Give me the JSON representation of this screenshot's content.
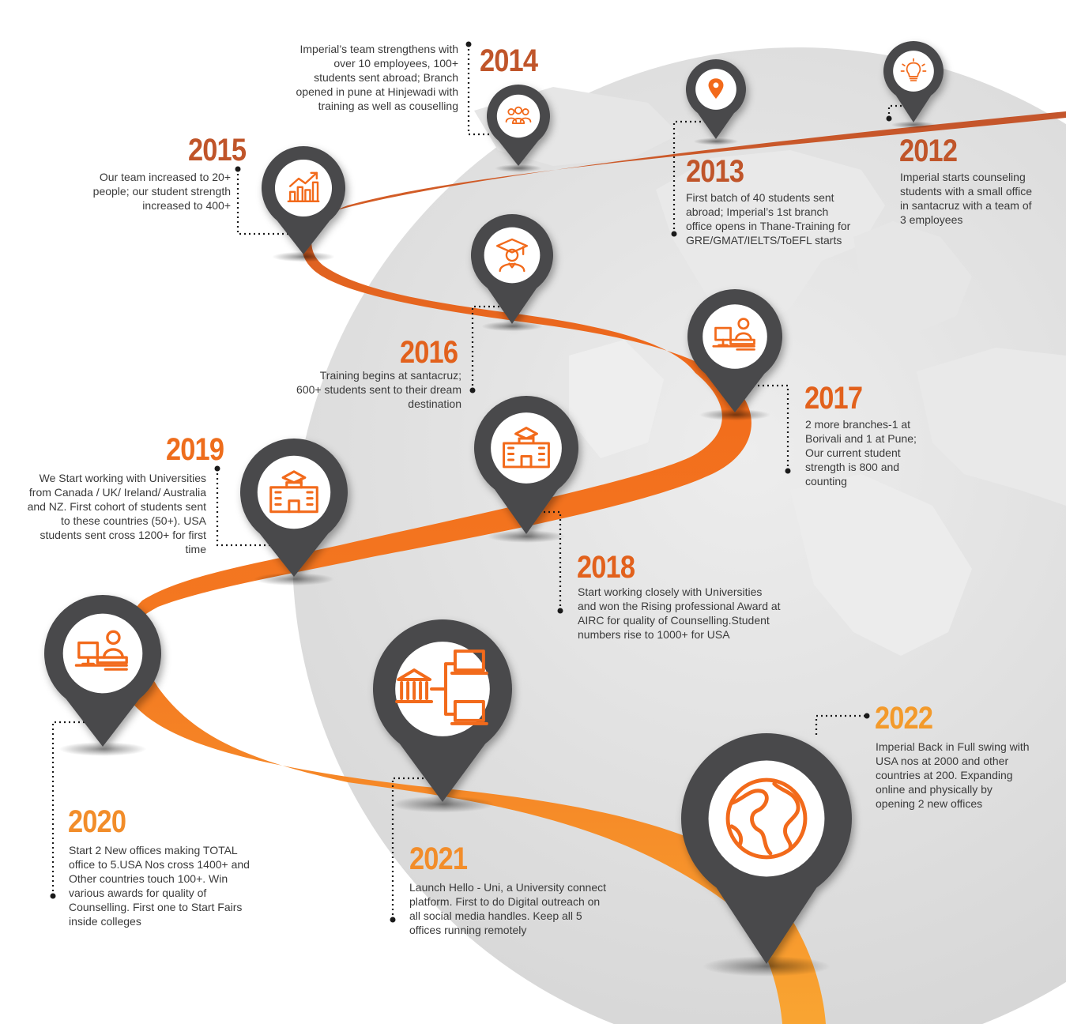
{
  "colors": {
    "pin": "#4a4a4c",
    "year_top": "#c0552a",
    "year_bottom": "#f39a2b",
    "ribbon_top": "#c3552c",
    "ribbon_mid": "#f26b1b",
    "ribbon_bottom": "#f9a532",
    "text": "#3a3a3a"
  },
  "milestones": [
    {
      "year": "2012",
      "icon": "lightbulb-icon",
      "text": "Imperial starts counseling students with a small office in santacruz with a team of 3 employees"
    },
    {
      "year": "2013",
      "icon": "location-pin-icon",
      "text": "First batch of 40 students sent abroad; Imperial’s 1st branch office opens in Thane-Training for GRE/GMAT/IELTS/ToEFL starts"
    },
    {
      "year": "2014",
      "icon": "team-icon",
      "text": "Imperial’s team strengthens with over 10 employees, 100+ students sent abroad; Branch opened in pune at Hinjewadi with training as well as couselling"
    },
    {
      "year": "2015",
      "icon": "growth-chart-icon",
      "text": "Our team increased to 20+ people; our student strength increased to 400+"
    },
    {
      "year": "2016",
      "icon": "graduate-icon",
      "text": "Training begins at santacruz; 600+ students sent to their dream destination"
    },
    {
      "year": "2017",
      "icon": "counsellor-desk-icon",
      "text": "2 more branches-1 at Borivali and 1 at Pune; Our current student strength is 800 and counting"
    },
    {
      "year": "2018",
      "icon": "university-icon",
      "text": "Start working closely with Universities and won the Rising professional Award at AIRC for quality of Counselling.Student numbers rise to 1000+ for USA"
    },
    {
      "year": "2019",
      "icon": "university-icon",
      "text": "We Start working with Universities from Canada / UK/ Ireland/ Australia and NZ. First cohort of students sent to these countries (50+). USA students sent cross 1200+ for first time"
    },
    {
      "year": "2020",
      "icon": "counsellor-desk-icon",
      "text": "Start 2 New offices making TOTAL office to 5.USA Nos cross 1400+ and Other countries touch 100+. Win various awards for quality of Counselling. First one to Start Fairs inside colleges"
    },
    {
      "year": "2021",
      "icon": "network-icon",
      "text": "Launch Hello - Uni, a University connect platform. First to do Digital outreach on all social media handles. Keep all 5 offices running remotely"
    },
    {
      "year": "2022",
      "icon": "globe-icon",
      "text": "Imperial Back in Full swing with USA nos at 2000 and other countries at 200. Expanding online and physically by opening 2 new offices"
    }
  ]
}
